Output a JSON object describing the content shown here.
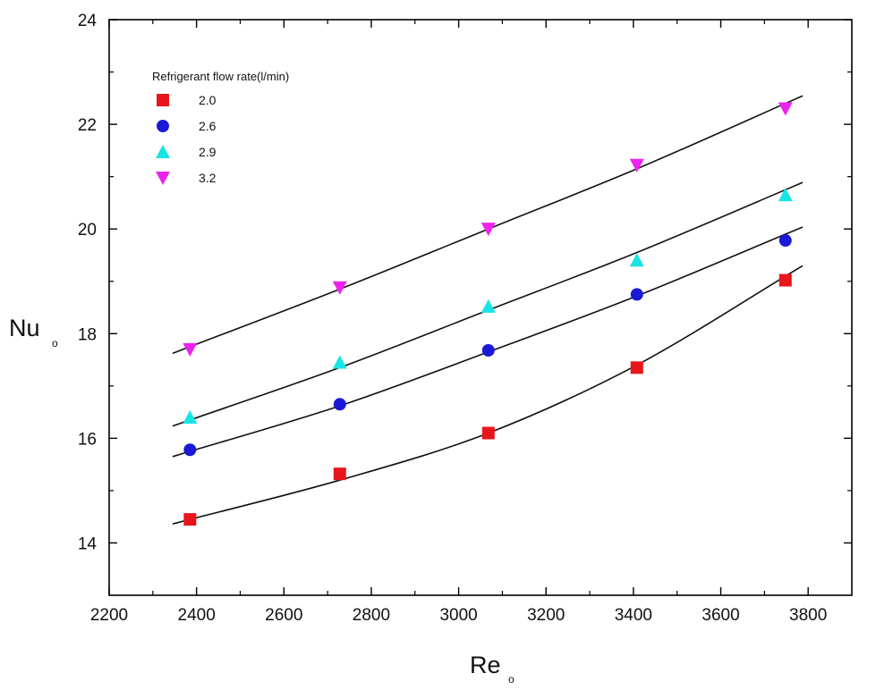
{
  "chart_data": {
    "type": "scatter",
    "title": "",
    "xlabel": "Re",
    "xlabel_subscript": "o",
    "ylabel": "Nu",
    "ylabel_subscript": "o",
    "xlim": [
      2200,
      3900
    ],
    "ylim": [
      13,
      24
    ],
    "xticks": [
      2200,
      2400,
      2600,
      2800,
      3000,
      3200,
      3400,
      3600,
      3800
    ],
    "yticks": [
      14,
      16,
      18,
      20,
      22,
      24
    ],
    "grid": false,
    "legend": {
      "title": "Refrigerant flow rate(l/min)",
      "placement": "top-left"
    },
    "series": [
      {
        "name": "2.0",
        "marker": "square",
        "color": "#e8161b",
        "x": [
          2385,
          2728,
          3068,
          3408,
          3748
        ],
        "y": [
          14.45,
          15.32,
          16.1,
          17.35,
          19.02
        ],
        "fit": [
          14.45,
          15.2,
          16.1,
          17.4,
          19.1
        ]
      },
      {
        "name": "2.6",
        "marker": "circle",
        "color": "#1a1ad6",
        "x": [
          2385,
          2728,
          3068,
          3408,
          3748
        ],
        "y": [
          15.78,
          16.65,
          17.68,
          18.75,
          19.78
        ],
        "fit": [
          15.75,
          16.62,
          17.65,
          18.72,
          19.9
        ]
      },
      {
        "name": "2.9",
        "marker": "triangle-up",
        "color": "#17e5e5",
        "x": [
          2385,
          2728,
          3068,
          3408,
          3748
        ],
        "y": [
          16.4,
          17.45,
          18.52,
          19.4,
          20.65
        ],
        "fit": [
          16.35,
          17.35,
          18.45,
          19.55,
          20.75
        ]
      },
      {
        "name": "3.2",
        "marker": "triangle-down",
        "color": "#ee22ee",
        "x": [
          2385,
          2728,
          3068,
          3408,
          3748
        ],
        "y": [
          17.7,
          18.88,
          20.0,
          21.22,
          22.3
        ],
        "fit": [
          17.75,
          18.85,
          20.0,
          21.15,
          22.4
        ]
      }
    ]
  }
}
